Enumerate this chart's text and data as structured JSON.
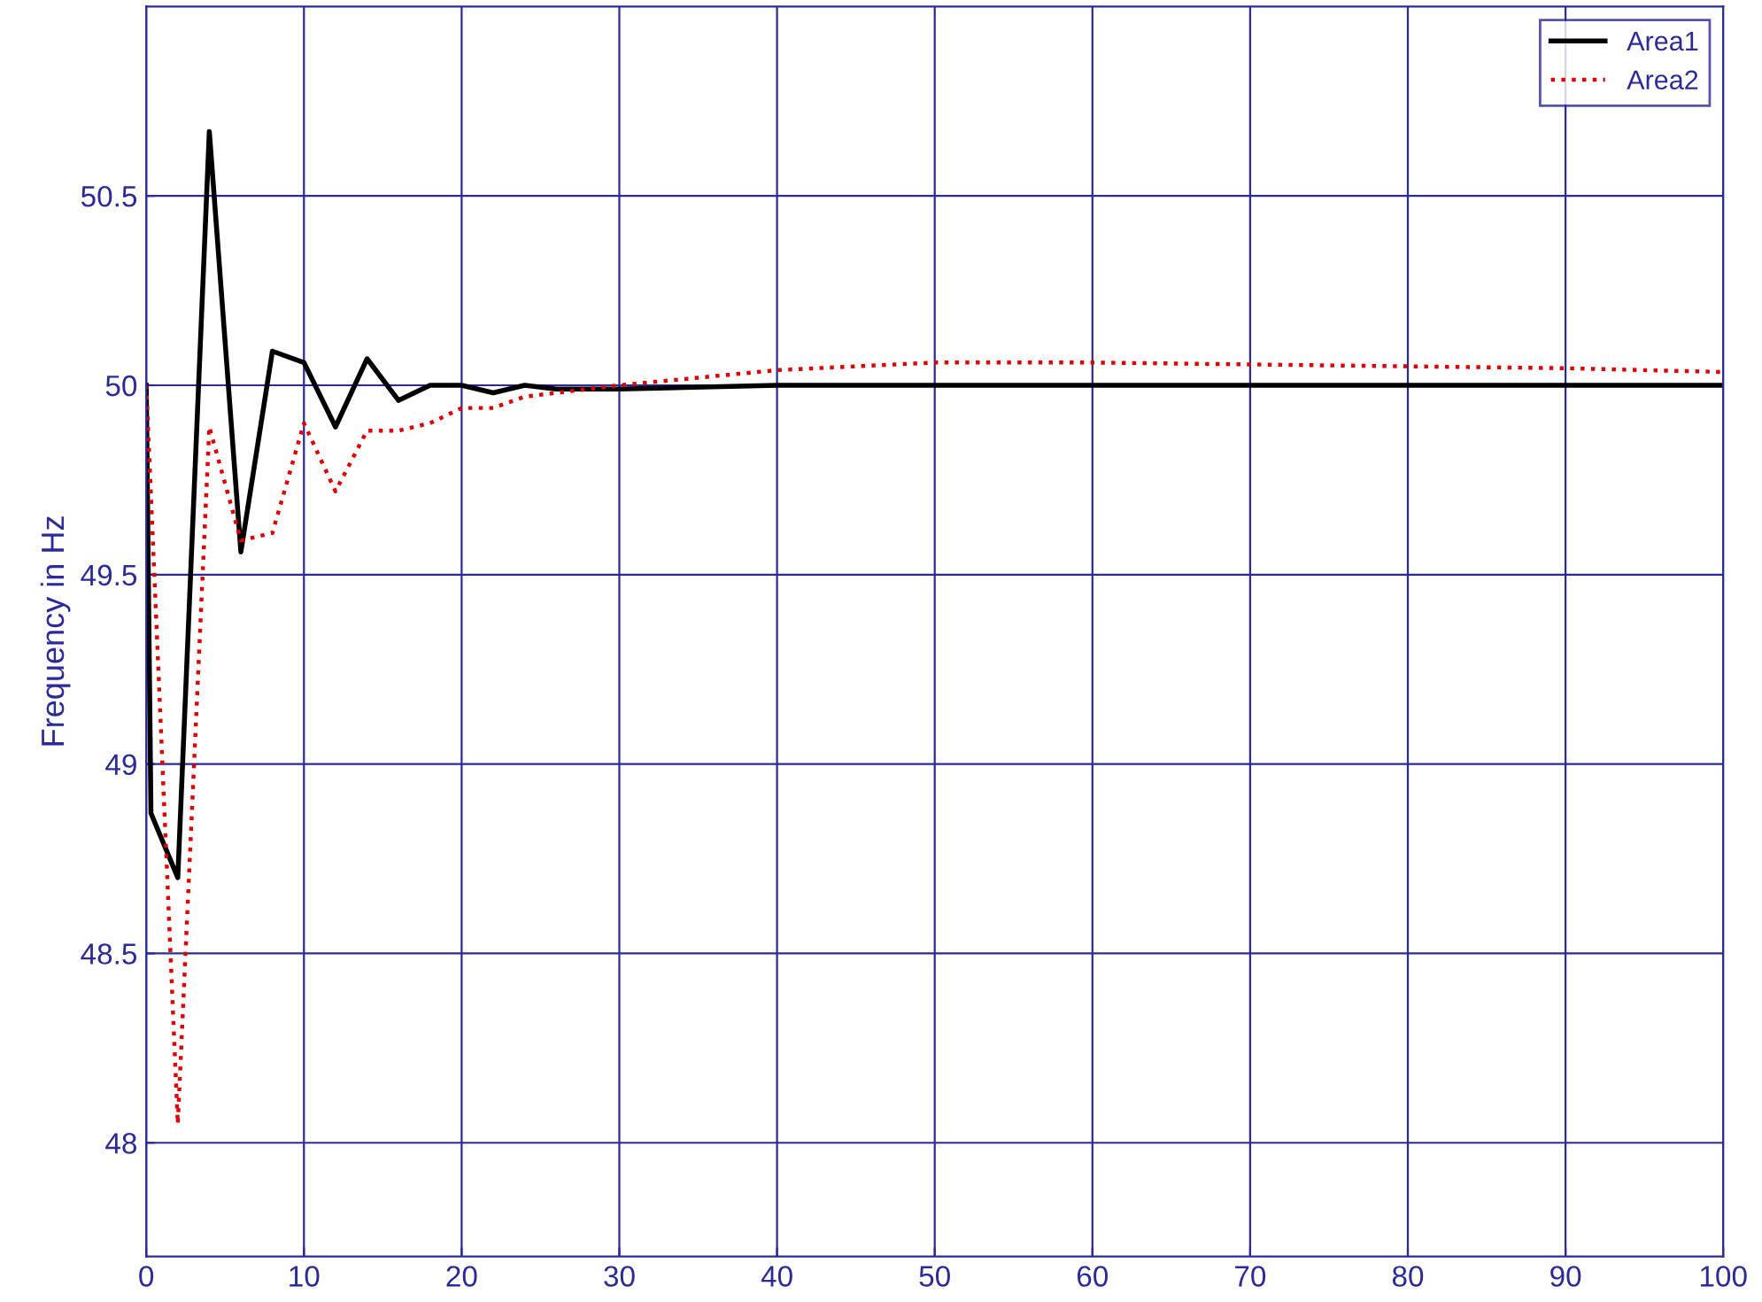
{
  "chart_data": {
    "type": "line",
    "ylabel": "Frequency in Hz",
    "xlim": [
      0,
      100
    ],
    "xticks": [
      0,
      10,
      20,
      30,
      40,
      50,
      60,
      70,
      80,
      90,
      100
    ],
    "ylim": [
      47.7,
      51.0
    ],
    "yticks": [
      48,
      48.5,
      49,
      49.5,
      50,
      50.5
    ],
    "grid": true,
    "legend": "top right",
    "series": [
      {
        "name": "Area1",
        "color": "#000000",
        "line_style": "solid",
        "x": [
          0,
          0.3,
          2,
          4,
          6,
          8,
          10,
          12,
          14,
          16,
          18,
          20,
          22,
          24,
          26,
          30,
          40,
          60,
          80,
          100
        ],
        "values": [
          50.0,
          48.87,
          48.7,
          50.67,
          49.56,
          50.09,
          50.06,
          49.89,
          50.07,
          49.96,
          50.0,
          50.0,
          49.98,
          50.0,
          49.99,
          49.99,
          50.0,
          50.0,
          50.0,
          50.0
        ]
      },
      {
        "name": "Area2",
        "color": "#e00000",
        "line_style": "dotted",
        "x": [
          0,
          2,
          4,
          6,
          8,
          10,
          12,
          14,
          16,
          18,
          20,
          22,
          24,
          26,
          30,
          35,
          40,
          50,
          60,
          70,
          80,
          90,
          100
        ],
        "values": [
          50.0,
          48.05,
          49.89,
          49.59,
          49.61,
          49.9,
          49.72,
          49.88,
          49.88,
          49.9,
          49.94,
          49.94,
          49.97,
          49.98,
          50.0,
          50.02,
          50.04,
          50.06,
          50.06,
          50.055,
          50.05,
          50.045,
          50.035
        ]
      }
    ]
  }
}
